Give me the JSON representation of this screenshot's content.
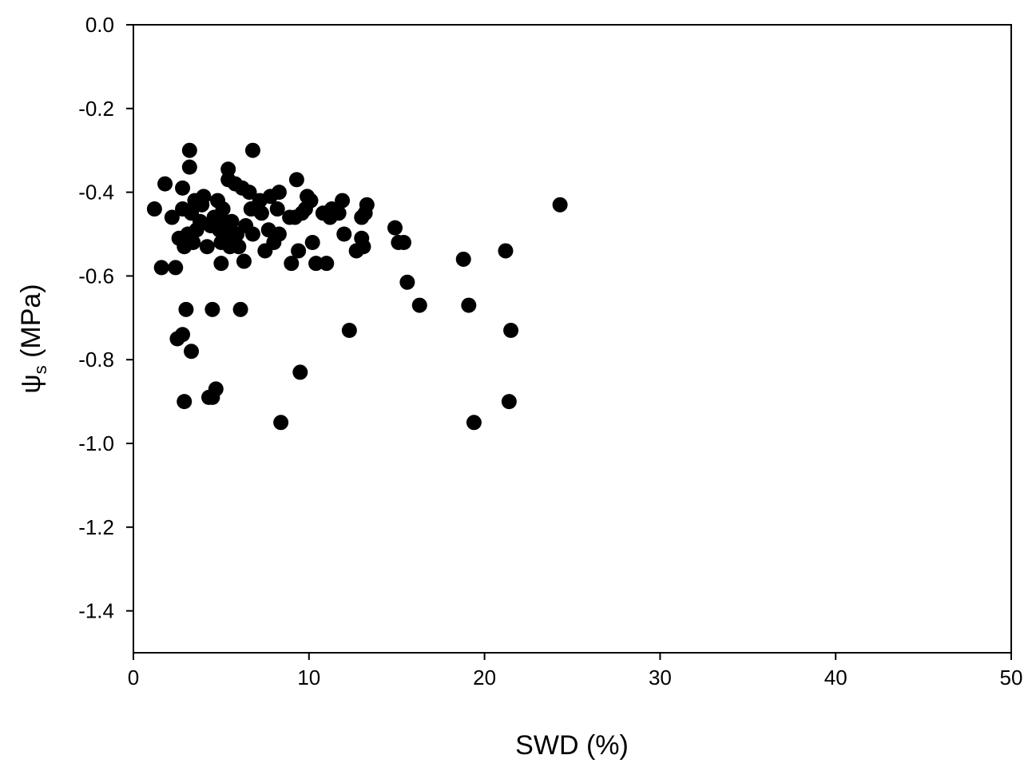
{
  "chart_data": {
    "type": "scatter",
    "xlabel": "SWD (%)",
    "ylabel": {
      "symbol": "ψ",
      "subscript": "s",
      "unit": "(MPa)"
    },
    "xlim": [
      0,
      50
    ],
    "ylim": [
      -1.5,
      0.0
    ],
    "xticks": [
      0,
      10,
      20,
      30,
      40,
      50
    ],
    "xtick_labels": [
      "0",
      "10",
      "20",
      "30",
      "40",
      "50"
    ],
    "yticks": [
      0.0,
      -0.2,
      -0.4,
      -0.6,
      -0.8,
      -1.0,
      -1.2,
      -1.4
    ],
    "ytick_labels": [
      "0.0",
      "-0.2",
      "-0.4",
      "-0.6",
      "-0.8",
      "-1.0",
      "-1.2",
      "-1.4"
    ],
    "grid": false,
    "marker_color": "#000000",
    "points": [
      {
        "x": 1.2,
        "y": -0.44
      },
      {
        "x": 1.6,
        "y": -0.58
      },
      {
        "x": 1.8,
        "y": -0.38
      },
      {
        "x": 2.2,
        "y": -0.46
      },
      {
        "x": 2.4,
        "y": -0.58
      },
      {
        "x": 2.5,
        "y": -0.75
      },
      {
        "x": 2.6,
        "y": -0.51
      },
      {
        "x": 2.8,
        "y": -0.74
      },
      {
        "x": 2.8,
        "y": -0.39
      },
      {
        "x": 2.8,
        "y": -0.44
      },
      {
        "x": 2.9,
        "y": -0.53
      },
      {
        "x": 2.9,
        "y": -0.9
      },
      {
        "x": 3.0,
        "y": -0.68
      },
      {
        "x": 3.1,
        "y": -0.5
      },
      {
        "x": 3.2,
        "y": -0.34
      },
      {
        "x": 3.2,
        "y": -0.3
      },
      {
        "x": 3.3,
        "y": -0.78
      },
      {
        "x": 3.3,
        "y": -0.45
      },
      {
        "x": 3.4,
        "y": -0.52
      },
      {
        "x": 3.5,
        "y": -0.42
      },
      {
        "x": 3.6,
        "y": -0.49
      },
      {
        "x": 3.8,
        "y": -0.47
      },
      {
        "x": 3.9,
        "y": -0.43
      },
      {
        "x": 4.0,
        "y": -0.41
      },
      {
        "x": 4.2,
        "y": -0.53
      },
      {
        "x": 4.3,
        "y": -0.89
      },
      {
        "x": 4.4,
        "y": -0.48
      },
      {
        "x": 4.5,
        "y": -0.68
      },
      {
        "x": 4.5,
        "y": -0.89
      },
      {
        "x": 4.6,
        "y": -0.46
      },
      {
        "x": 4.7,
        "y": -0.87
      },
      {
        "x": 4.8,
        "y": -0.42
      },
      {
        "x": 4.9,
        "y": -0.49
      },
      {
        "x": 5.0,
        "y": -0.52
      },
      {
        "x": 5.0,
        "y": -0.57
      },
      {
        "x": 5.1,
        "y": -0.44
      },
      {
        "x": 5.2,
        "y": -0.47
      },
      {
        "x": 5.3,
        "y": -0.5
      },
      {
        "x": 5.4,
        "y": -0.37
      },
      {
        "x": 5.4,
        "y": -0.345
      },
      {
        "x": 5.5,
        "y": -0.53
      },
      {
        "x": 5.6,
        "y": -0.47
      },
      {
        "x": 5.8,
        "y": -0.38
      },
      {
        "x": 5.9,
        "y": -0.5
      },
      {
        "x": 6.0,
        "y": -0.53
      },
      {
        "x": 6.1,
        "y": -0.68
      },
      {
        "x": 6.2,
        "y": -0.39
      },
      {
        "x": 6.3,
        "y": -0.565
      },
      {
        "x": 6.4,
        "y": -0.48
      },
      {
        "x": 6.6,
        "y": -0.4
      },
      {
        "x": 6.7,
        "y": -0.44
      },
      {
        "x": 6.8,
        "y": -0.5
      },
      {
        "x": 6.8,
        "y": -0.3
      },
      {
        "x": 7.0,
        "y": -0.44
      },
      {
        "x": 7.2,
        "y": -0.42
      },
      {
        "x": 7.3,
        "y": -0.45
      },
      {
        "x": 7.5,
        "y": -0.54
      },
      {
        "x": 7.7,
        "y": -0.49
      },
      {
        "x": 7.8,
        "y": -0.41
      },
      {
        "x": 8.0,
        "y": -0.52
      },
      {
        "x": 8.2,
        "y": -0.44
      },
      {
        "x": 8.3,
        "y": -0.5
      },
      {
        "x": 8.3,
        "y": -0.4
      },
      {
        "x": 8.4,
        "y": -0.95
      },
      {
        "x": 8.9,
        "y": -0.46
      },
      {
        "x": 9.0,
        "y": -0.57
      },
      {
        "x": 9.2,
        "y": -0.46
      },
      {
        "x": 9.3,
        "y": -0.37
      },
      {
        "x": 9.4,
        "y": -0.54
      },
      {
        "x": 9.5,
        "y": -0.83
      },
      {
        "x": 9.6,
        "y": -0.45
      },
      {
        "x": 9.8,
        "y": -0.44
      },
      {
        "x": 9.9,
        "y": -0.41
      },
      {
        "x": 10.1,
        "y": -0.42
      },
      {
        "x": 10.2,
        "y": -0.52
      },
      {
        "x": 10.4,
        "y": -0.57
      },
      {
        "x": 10.8,
        "y": -0.45
      },
      {
        "x": 11.0,
        "y": -0.57
      },
      {
        "x": 11.2,
        "y": -0.46
      },
      {
        "x": 11.3,
        "y": -0.44
      },
      {
        "x": 11.5,
        "y": -0.45
      },
      {
        "x": 11.7,
        "y": -0.45
      },
      {
        "x": 11.9,
        "y": -0.42
      },
      {
        "x": 12.0,
        "y": -0.5
      },
      {
        "x": 12.3,
        "y": -0.73
      },
      {
        "x": 12.7,
        "y": -0.54
      },
      {
        "x": 13.0,
        "y": -0.51
      },
      {
        "x": 13.0,
        "y": -0.46
      },
      {
        "x": 13.1,
        "y": -0.53
      },
      {
        "x": 13.2,
        "y": -0.45
      },
      {
        "x": 13.3,
        "y": -0.43
      },
      {
        "x": 14.9,
        "y": -0.485
      },
      {
        "x": 15.1,
        "y": -0.52
      },
      {
        "x": 15.4,
        "y": -0.52
      },
      {
        "x": 15.6,
        "y": -0.615
      },
      {
        "x": 16.3,
        "y": -0.67
      },
      {
        "x": 18.8,
        "y": -0.56
      },
      {
        "x": 19.1,
        "y": -0.67
      },
      {
        "x": 19.4,
        "y": -0.95
      },
      {
        "x": 21.2,
        "y": -0.54
      },
      {
        "x": 21.4,
        "y": -0.9
      },
      {
        "x": 21.5,
        "y": -0.73
      },
      {
        "x": 24.3,
        "y": -0.43
      }
    ]
  }
}
